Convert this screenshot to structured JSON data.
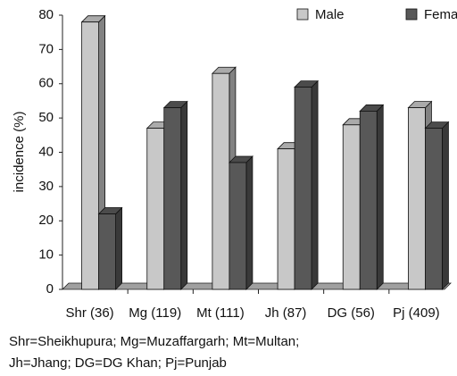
{
  "chart_data": {
    "type": "bar",
    "y_label": "incidence (%)",
    "categories": [
      "Shr (36)",
      "Mg (119)",
      "Mt (111)",
      "Jh (87)",
      "DG (56)",
      "Pj (409)"
    ],
    "series": [
      {
        "name": "Male",
        "color": "#c8c8c8",
        "values": [
          78,
          47,
          63,
          41,
          48,
          53
        ]
      },
      {
        "name": "Female",
        "color": "#585858",
        "values": [
          22,
          53,
          37,
          59,
          52,
          47
        ]
      }
    ],
    "ylim": [
      0,
      80
    ],
    "yticks": [
      0,
      10,
      20,
      30,
      40,
      50,
      60,
      70,
      80
    ],
    "footnote": [
      "Shr=Sheikhupura; Mg=Muzaffargarh; Mt=Multan;",
      "Jh=Jhang; DG=DG Khan; Pj=Punjab"
    ]
  }
}
